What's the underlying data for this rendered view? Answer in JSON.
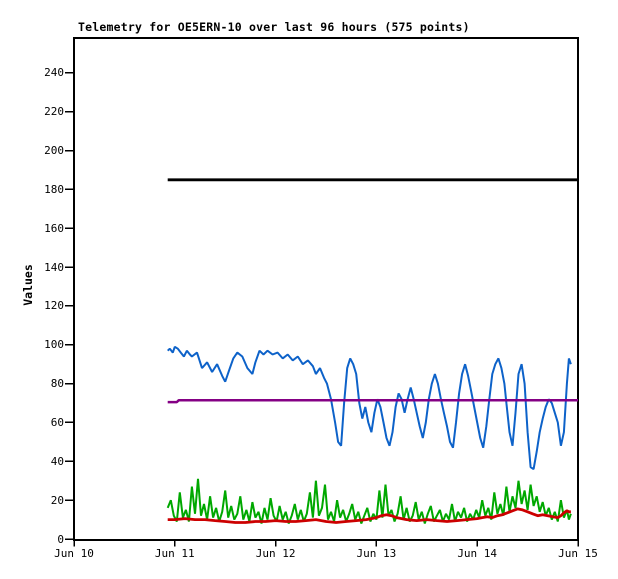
{
  "chart_data": {
    "type": "line",
    "title": "Telemetry for OE5ERN-10 over last 96 hours (575 points)",
    "ylabel": "Values",
    "xlabel": "",
    "point_count_label": "575 points",
    "x_tick_labels": [
      "Jun 10",
      "Jun 11",
      "Jun 12",
      "Jun 13",
      "Jun 14",
      "Jun 15"
    ],
    "y_tick_values": [
      0,
      20,
      40,
      60,
      80,
      100,
      120,
      140,
      160,
      180,
      200,
      220,
      240
    ],
    "xlim_days": [
      0,
      5
    ],
    "ylim": [
      0,
      258
    ],
    "grid": false,
    "legend": "none",
    "axis_color": "#000000",
    "background": "#ffffff",
    "series": [
      {
        "name": "black",
        "color": "#000000",
        "width": 2.8,
        "points": [
          [
            0.93,
            185
          ],
          [
            5.0,
            185
          ]
        ]
      },
      {
        "name": "blue",
        "color": "#0d62c9",
        "width": 2.0,
        "points": [
          [
            0.93,
            97
          ],
          [
            0.95,
            98
          ],
          [
            0.98,
            96
          ],
          [
            1.0,
            99
          ],
          [
            1.03,
            98
          ],
          [
            1.06,
            96
          ],
          [
            1.09,
            94
          ],
          [
            1.12,
            97
          ],
          [
            1.15,
            95
          ],
          [
            1.17,
            94
          ],
          [
            1.22,
            96
          ],
          [
            1.27,
            88
          ],
          [
            1.32,
            91
          ],
          [
            1.37,
            86
          ],
          [
            1.42,
            90
          ],
          [
            1.47,
            84
          ],
          [
            1.5,
            81
          ],
          [
            1.54,
            87
          ],
          [
            1.58,
            93
          ],
          [
            1.62,
            96
          ],
          [
            1.67,
            94
          ],
          [
            1.72,
            88
          ],
          [
            1.77,
            85
          ],
          [
            1.8,
            91
          ],
          [
            1.84,
            97
          ],
          [
            1.88,
            95
          ],
          [
            1.92,
            97
          ],
          [
            1.97,
            95
          ],
          [
            2.02,
            96
          ],
          [
            2.07,
            93
          ],
          [
            2.12,
            95
          ],
          [
            2.17,
            92
          ],
          [
            2.22,
            94
          ],
          [
            2.27,
            90
          ],
          [
            2.32,
            92
          ],
          [
            2.37,
            89
          ],
          [
            2.4,
            85
          ],
          [
            2.44,
            88
          ],
          [
            2.48,
            83
          ],
          [
            2.51,
            80
          ],
          [
            2.55,
            72
          ],
          [
            2.59,
            60
          ],
          [
            2.62,
            50
          ],
          [
            2.65,
            48
          ],
          [
            2.68,
            70
          ],
          [
            2.71,
            88
          ],
          [
            2.74,
            93
          ],
          [
            2.77,
            90
          ],
          [
            2.8,
            85
          ],
          [
            2.83,
            70
          ],
          [
            2.86,
            62
          ],
          [
            2.89,
            68
          ],
          [
            2.92,
            60
          ],
          [
            2.95,
            55
          ],
          [
            2.98,
            65
          ],
          [
            3.01,
            72
          ],
          [
            3.04,
            68
          ],
          [
            3.07,
            60
          ],
          [
            3.1,
            52
          ],
          [
            3.13,
            48
          ],
          [
            3.16,
            55
          ],
          [
            3.19,
            68
          ],
          [
            3.22,
            75
          ],
          [
            3.25,
            72
          ],
          [
            3.28,
            65
          ],
          [
            3.31,
            72
          ],
          [
            3.34,
            78
          ],
          [
            3.37,
            72
          ],
          [
            3.4,
            65
          ],
          [
            3.43,
            58
          ],
          [
            3.46,
            52
          ],
          [
            3.49,
            60
          ],
          [
            3.52,
            72
          ],
          [
            3.55,
            80
          ],
          [
            3.58,
            85
          ],
          [
            3.61,
            80
          ],
          [
            3.64,
            72
          ],
          [
            3.67,
            65
          ],
          [
            3.7,
            58
          ],
          [
            3.73,
            50
          ],
          [
            3.76,
            47
          ],
          [
            3.79,
            60
          ],
          [
            3.82,
            75
          ],
          [
            3.85,
            85
          ],
          [
            3.88,
            90
          ],
          [
            3.91,
            84
          ],
          [
            3.94,
            76
          ],
          [
            3.97,
            68
          ],
          [
            4.0,
            60
          ],
          [
            4.03,
            52
          ],
          [
            4.06,
            47
          ],
          [
            4.09,
            58
          ],
          [
            4.12,
            72
          ],
          [
            4.15,
            85
          ],
          [
            4.18,
            90
          ],
          [
            4.21,
            93
          ],
          [
            4.24,
            88
          ],
          [
            4.27,
            80
          ],
          [
            4.29,
            70
          ],
          [
            4.32,
            55
          ],
          [
            4.35,
            48
          ],
          [
            4.38,
            65
          ],
          [
            4.41,
            85
          ],
          [
            4.44,
            90
          ],
          [
            4.47,
            80
          ],
          [
            4.5,
            55
          ],
          [
            4.53,
            37
          ],
          [
            4.56,
            36
          ],
          [
            4.59,
            45
          ],
          [
            4.62,
            55
          ],
          [
            4.65,
            62
          ],
          [
            4.68,
            68
          ],
          [
            4.71,
            72
          ],
          [
            4.74,
            70
          ],
          [
            4.77,
            65
          ],
          [
            4.8,
            60
          ],
          [
            4.83,
            48
          ],
          [
            4.86,
            55
          ],
          [
            4.89,
            80
          ],
          [
            4.91,
            93
          ],
          [
            4.93,
            90
          ]
        ]
      },
      {
        "name": "purple",
        "color": "#840084",
        "width": 2.5,
        "points": [
          [
            0.93,
            70.5
          ],
          [
            1.02,
            70.5
          ],
          [
            1.04,
            71.5
          ],
          [
            5.0,
            71.5
          ]
        ]
      },
      {
        "name": "green",
        "color": "#00a800",
        "width": 2.0,
        "points": [
          [
            0.93,
            16
          ],
          [
            0.96,
            20
          ],
          [
            0.99,
            12
          ],
          [
            1.02,
            9
          ],
          [
            1.05,
            24
          ],
          [
            1.08,
            11
          ],
          [
            1.11,
            15
          ],
          [
            1.14,
            9
          ],
          [
            1.17,
            27
          ],
          [
            1.2,
            13
          ],
          [
            1.23,
            31
          ],
          [
            1.26,
            12
          ],
          [
            1.29,
            18
          ],
          [
            1.32,
            10
          ],
          [
            1.35,
            22
          ],
          [
            1.38,
            11
          ],
          [
            1.41,
            16
          ],
          [
            1.44,
            9
          ],
          [
            1.47,
            14
          ],
          [
            1.5,
            25
          ],
          [
            1.53,
            11
          ],
          [
            1.56,
            17
          ],
          [
            1.59,
            10
          ],
          [
            1.62,
            13
          ],
          [
            1.65,
            22
          ],
          [
            1.68,
            10
          ],
          [
            1.71,
            15
          ],
          [
            1.74,
            9
          ],
          [
            1.77,
            19
          ],
          [
            1.8,
            11
          ],
          [
            1.83,
            14
          ],
          [
            1.86,
            8
          ],
          [
            1.89,
            16
          ],
          [
            1.92,
            10
          ],
          [
            1.95,
            21
          ],
          [
            1.98,
            12
          ],
          [
            2.01,
            9
          ],
          [
            2.04,
            17
          ],
          [
            2.07,
            10
          ],
          [
            2.1,
            14
          ],
          [
            2.13,
            8
          ],
          [
            2.16,
            12
          ],
          [
            2.19,
            18
          ],
          [
            2.22,
            10
          ],
          [
            2.25,
            15
          ],
          [
            2.28,
            9
          ],
          [
            2.31,
            13
          ],
          [
            2.34,
            24
          ],
          [
            2.37,
            11
          ],
          [
            2.4,
            30
          ],
          [
            2.43,
            12
          ],
          [
            2.46,
            16
          ],
          [
            2.49,
            28
          ],
          [
            2.52,
            10
          ],
          [
            2.55,
            14
          ],
          [
            2.58,
            9
          ],
          [
            2.61,
            20
          ],
          [
            2.64,
            11
          ],
          [
            2.67,
            15
          ],
          [
            2.7,
            9
          ],
          [
            2.73,
            13
          ],
          [
            2.76,
            18
          ],
          [
            2.79,
            10
          ],
          [
            2.82,
            14
          ],
          [
            2.85,
            8
          ],
          [
            2.88,
            12
          ],
          [
            2.91,
            16
          ],
          [
            2.94,
            9
          ],
          [
            2.97,
            13
          ],
          [
            3.0,
            10
          ],
          [
            3.03,
            25
          ],
          [
            3.06,
            11
          ],
          [
            3.09,
            28
          ],
          [
            3.12,
            12
          ],
          [
            3.15,
            15
          ],
          [
            3.18,
            9
          ],
          [
            3.21,
            13
          ],
          [
            3.24,
            22
          ],
          [
            3.27,
            10
          ],
          [
            3.3,
            16
          ],
          [
            3.33,
            9
          ],
          [
            3.36,
            12
          ],
          [
            3.39,
            19
          ],
          [
            3.42,
            10
          ],
          [
            3.45,
            14
          ],
          [
            3.48,
            8
          ],
          [
            3.51,
            13
          ],
          [
            3.54,
            17
          ],
          [
            3.57,
            9
          ],
          [
            3.6,
            12
          ],
          [
            3.63,
            15
          ],
          [
            3.66,
            9
          ],
          [
            3.69,
            13
          ],
          [
            3.72,
            10
          ],
          [
            3.75,
            18
          ],
          [
            3.78,
            9
          ],
          [
            3.81,
            14
          ],
          [
            3.84,
            11
          ],
          [
            3.87,
            16
          ],
          [
            3.9,
            9
          ],
          [
            3.93,
            13
          ],
          [
            3.96,
            10
          ],
          [
            3.99,
            15
          ],
          [
            4.02,
            11
          ],
          [
            4.05,
            20
          ],
          [
            4.08,
            12
          ],
          [
            4.11,
            16
          ],
          [
            4.14,
            10
          ],
          [
            4.17,
            24
          ],
          [
            4.2,
            13
          ],
          [
            4.23,
            18
          ],
          [
            4.26,
            12
          ],
          [
            4.29,
            27
          ],
          [
            4.32,
            14
          ],
          [
            4.35,
            22
          ],
          [
            4.38,
            16
          ],
          [
            4.41,
            30
          ],
          [
            4.44,
            18
          ],
          [
            4.47,
            25
          ],
          [
            4.5,
            15
          ],
          [
            4.53,
            28
          ],
          [
            4.56,
            17
          ],
          [
            4.59,
            22
          ],
          [
            4.62,
            14
          ],
          [
            4.65,
            19
          ],
          [
            4.68,
            12
          ],
          [
            4.71,
            16
          ],
          [
            4.74,
            10
          ],
          [
            4.77,
            14
          ],
          [
            4.8,
            9
          ],
          [
            4.83,
            20
          ],
          [
            4.86,
            11
          ],
          [
            4.89,
            15
          ],
          [
            4.91,
            10
          ],
          [
            4.93,
            13
          ]
        ]
      },
      {
        "name": "red",
        "color": "#cc0000",
        "width": 2.8,
        "points": [
          [
            0.93,
            10
          ],
          [
            1.0,
            10
          ],
          [
            1.1,
            10.5
          ],
          [
            1.2,
            10
          ],
          [
            1.3,
            10
          ],
          [
            1.4,
            9.5
          ],
          [
            1.5,
            9
          ],
          [
            1.6,
            8.5
          ],
          [
            1.7,
            8.5
          ],
          [
            1.8,
            9
          ],
          [
            1.9,
            9
          ],
          [
            2.0,
            9.5
          ],
          [
            2.1,
            9
          ],
          [
            2.2,
            9
          ],
          [
            2.3,
            9.5
          ],
          [
            2.4,
            10
          ],
          [
            2.5,
            9
          ],
          [
            2.6,
            8.5
          ],
          [
            2.7,
            9
          ],
          [
            2.8,
            9.5
          ],
          [
            2.9,
            10
          ],
          [
            3.0,
            11
          ],
          [
            3.05,
            12
          ],
          [
            3.1,
            12.5
          ],
          [
            3.15,
            12
          ],
          [
            3.2,
            11
          ],
          [
            3.3,
            10
          ],
          [
            3.4,
            9.5
          ],
          [
            3.5,
            10
          ],
          [
            3.6,
            9.5
          ],
          [
            3.7,
            9
          ],
          [
            3.8,
            9.5
          ],
          [
            3.9,
            10
          ],
          [
            4.0,
            10.5
          ],
          [
            4.05,
            11
          ],
          [
            4.1,
            11.5
          ],
          [
            4.15,
            11
          ],
          [
            4.2,
            12
          ],
          [
            4.25,
            12.5
          ],
          [
            4.3,
            13.5
          ],
          [
            4.35,
            14.5
          ],
          [
            4.4,
            15.5
          ],
          [
            4.45,
            15
          ],
          [
            4.5,
            14
          ],
          [
            4.55,
            13
          ],
          [
            4.6,
            12
          ],
          [
            4.65,
            12.5
          ],
          [
            4.7,
            12
          ],
          [
            4.75,
            11.5
          ],
          [
            4.8,
            11
          ],
          [
            4.83,
            12
          ],
          [
            4.86,
            13.5
          ],
          [
            4.89,
            14.5
          ],
          [
            4.91,
            14
          ],
          [
            4.93,
            14
          ]
        ]
      }
    ]
  }
}
